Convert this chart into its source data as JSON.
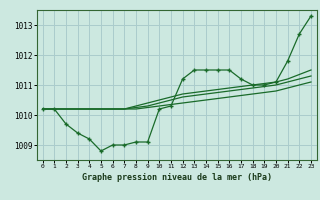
{
  "background_color": "#cce8e0",
  "grid_color": "#aacccc",
  "line_color": "#1a6b2a",
  "hours": [
    0,
    1,
    2,
    3,
    4,
    5,
    6,
    7,
    8,
    9,
    10,
    11,
    12,
    13,
    14,
    15,
    16,
    17,
    18,
    19,
    20,
    21,
    22,
    23
  ],
  "ylim": [
    1008.5,
    1013.5
  ],
  "yticks": [
    1009,
    1010,
    1011,
    1012,
    1013
  ],
  "line_jagged": [
    1010.2,
    1010.2,
    1009.7,
    1009.4,
    1009.2,
    1008.8,
    1009.0,
    1009.0,
    1009.1,
    1009.1,
    1010.2,
    1010.3,
    1011.2,
    1011.5,
    1011.5,
    1011.5,
    1011.5,
    1011.2,
    1011.0,
    1011.0,
    1011.1,
    1011.8,
    1012.7,
    1013.3
  ],
  "line_straight1": [
    1010.2,
    1010.2,
    1010.2,
    1010.2,
    1010.2,
    1010.2,
    1010.2,
    1010.2,
    1010.2,
    1010.25,
    1010.3,
    1010.35,
    1010.4,
    1010.45,
    1010.5,
    1010.55,
    1010.6,
    1010.65,
    1010.7,
    1010.75,
    1010.8,
    1010.9,
    1011.0,
    1011.1
  ],
  "line_straight2": [
    1010.2,
    1010.2,
    1010.2,
    1010.2,
    1010.2,
    1010.2,
    1010.2,
    1010.2,
    1010.25,
    1010.3,
    1010.4,
    1010.5,
    1010.6,
    1010.65,
    1010.7,
    1010.75,
    1010.8,
    1010.85,
    1010.9,
    1010.95,
    1011.0,
    1011.1,
    1011.2,
    1011.3
  ],
  "line_straight3": [
    1010.2,
    1010.2,
    1010.2,
    1010.2,
    1010.2,
    1010.2,
    1010.2,
    1010.2,
    1010.3,
    1010.4,
    1010.5,
    1010.6,
    1010.7,
    1010.75,
    1010.8,
    1010.85,
    1010.9,
    1010.95,
    1011.0,
    1011.05,
    1011.1,
    1011.2,
    1011.35,
    1011.5
  ],
  "xlabel": "Graphe pression niveau de la mer (hPa)"
}
